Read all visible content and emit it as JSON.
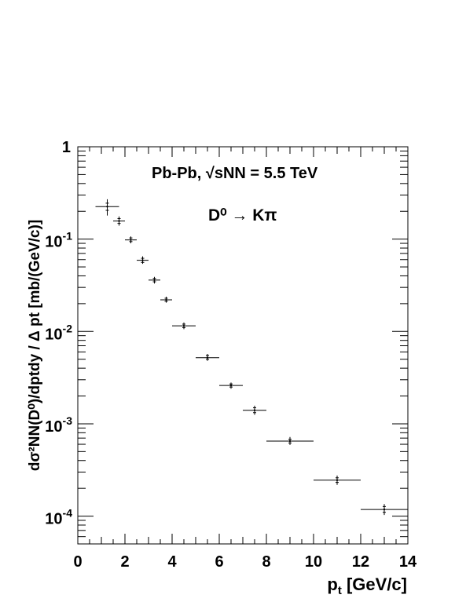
{
  "chart_data": {
    "type": "scatter",
    "xlim": [
      0,
      14
    ],
    "ylim": [
      5e-05,
      1
    ],
    "yscale": "log",
    "grid": false,
    "x_ticks": [
      "0",
      "2",
      "4",
      "6",
      "8",
      "10",
      "12",
      "14"
    ],
    "y_ticks": [
      {
        "value": 1,
        "label": "1"
      },
      {
        "value": 0.1,
        "mant": "10",
        "exp": "-1"
      },
      {
        "value": 0.01,
        "mant": "10",
        "exp": "-2"
      },
      {
        "value": 0.001,
        "mant": "10",
        "exp": "-3"
      },
      {
        "value": 0.0001,
        "mant": "10",
        "exp": "-4"
      }
    ],
    "xlabel": {
      "main": "p",
      "sub": "t",
      "rest": " [GeV/c]"
    },
    "ylabel_text": "dσ²NN(D⁰)/dptdy / Δ pt [mb/(GeV/c)]",
    "annotations": {
      "system": "Pb-Pb, √sNN = 5.5 TeV",
      "decay": "D⁰ → Kπ"
    },
    "points": [
      {
        "x": 1.25,
        "y": 0.225,
        "xlo": 0.75,
        "xhi": 1.75,
        "ylo": 0.18,
        "yhi": 0.27,
        "sylo": 0.205,
        "syhi": 0.245
      },
      {
        "x": 1.75,
        "y": 0.157,
        "xlo": 1.5,
        "xhi": 2.0,
        "ylo": 0.14,
        "yhi": 0.176,
        "sylo": 0.148,
        "syhi": 0.167
      },
      {
        "x": 2.25,
        "y": 0.098,
        "xlo": 2.0,
        "xhi": 2.5,
        "ylo": 0.09,
        "yhi": 0.107,
        "sylo": 0.094,
        "syhi": 0.103
      },
      {
        "x": 2.75,
        "y": 0.059,
        "xlo": 2.5,
        "xhi": 3.0,
        "ylo": 0.054,
        "yhi": 0.065,
        "sylo": 0.056,
        "syhi": 0.062
      },
      {
        "x": 3.25,
        "y": 0.036,
        "xlo": 3.0,
        "xhi": 3.5,
        "ylo": 0.033,
        "yhi": 0.039,
        "sylo": 0.0345,
        "syhi": 0.0375
      },
      {
        "x": 3.75,
        "y": 0.022,
        "xlo": 3.5,
        "xhi": 4.0,
        "ylo": 0.0205,
        "yhi": 0.0238,
        "sylo": 0.0212,
        "syhi": 0.0229
      },
      {
        "x": 4.5,
        "y": 0.0115,
        "xlo": 4.0,
        "xhi": 5.0,
        "ylo": 0.0106,
        "yhi": 0.0125,
        "sylo": 0.011,
        "syhi": 0.012
      },
      {
        "x": 5.5,
        "y": 0.0052,
        "xlo": 5.0,
        "xhi": 6.0,
        "ylo": 0.0048,
        "yhi": 0.0057,
        "sylo": 0.005,
        "syhi": 0.0055
      },
      {
        "x": 6.5,
        "y": 0.0026,
        "xlo": 6.0,
        "xhi": 7.0,
        "ylo": 0.0024,
        "yhi": 0.0028,
        "sylo": 0.0025,
        "syhi": 0.0027
      },
      {
        "x": 7.5,
        "y": 0.0014,
        "xlo": 7.0,
        "xhi": 8.0,
        "ylo": 0.00125,
        "yhi": 0.00157,
        "sylo": 0.00132,
        "syhi": 0.00149
      },
      {
        "x": 9.0,
        "y": 0.00065,
        "xlo": 8.0,
        "xhi": 10.0,
        "ylo": 0.00059,
        "yhi": 0.00072,
        "sylo": 0.00062,
        "syhi": 0.00068
      },
      {
        "x": 11.0,
        "y": 0.000245,
        "xlo": 10.0,
        "xhi": 12.0,
        "ylo": 0.000218,
        "yhi": 0.000275,
        "sylo": 0.000232,
        "syhi": 0.00026
      },
      {
        "x": 13.0,
        "y": 0.000118,
        "xlo": 12.0,
        "xhi": 14.0,
        "ylo": 0.000103,
        "yhi": 0.000135,
        "sylo": 0.00011,
        "syhi": 0.000127
      }
    ]
  }
}
